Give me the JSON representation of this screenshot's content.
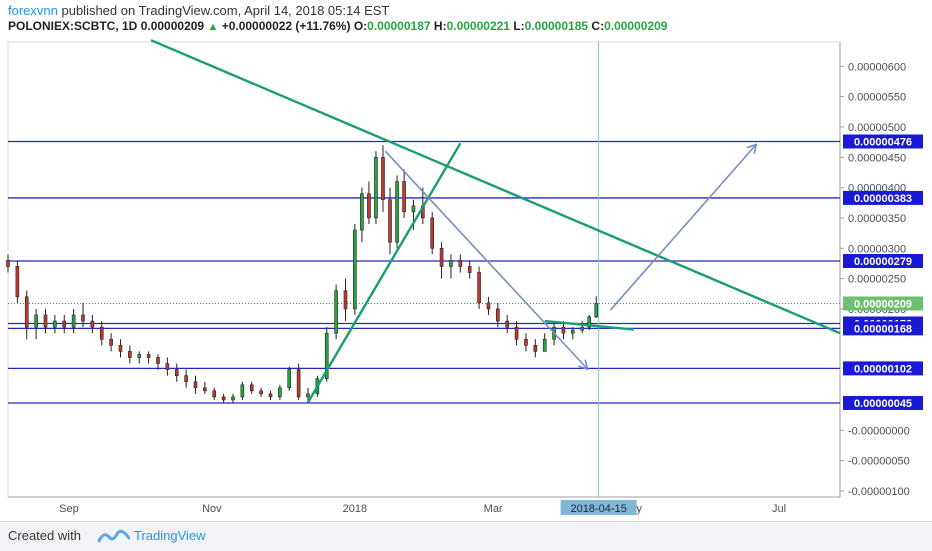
{
  "header": {
    "author": "forexvnn",
    "published_text": " published on TradingView.com, April 14, 2018 05:14 EST",
    "symbol": "POLONIEX:SCBTC, 1D",
    "last": "0.00000209",
    "change": "+0.00000022 (+11.76%)",
    "o_label": "O:",
    "o_value": "0.00000187",
    "h_label": "H:",
    "h_value": "0.00000221",
    "l_label": "L:",
    "l_value": "0.00000185",
    "c_label": "C:",
    "c_value": "0.00000209"
  },
  "footer": {
    "created_with": "Created with",
    "brand": "TradingView"
  },
  "colors": {
    "up": "#26a641",
    "down": "#c0392b",
    "hline": "#2727c7",
    "trend": "#1a9c74",
    "arrow": "#7b8bc4",
    "crosshair": "#7ec8e3",
    "label_bg": "#1a1ad6",
    "last_label_bg": "#6fbf73",
    "date_label_bg": "#7fb7d4"
  },
  "chart_data": {
    "type": "candlestick",
    "y_axis": {
      "range": [
        -1.1e-06,
        6.4e-06
      ],
      "tick_labels": [
        "0.00000600",
        "0.00000550",
        "0.00000500",
        "0.00000450",
        "0.00000400",
        "0.00000350",
        "0.00000300",
        "0.00000250",
        "0.00000200",
        "-0.00000000",
        "-0.00000050",
        "-0.00000100"
      ],
      "tick_values": [
        6e-06,
        5.5e-06,
        5e-06,
        4.5e-06,
        4e-06,
        3.5e-06,
        3e-06,
        2.5e-06,
        2e-06,
        0,
        -5e-07,
        -1e-06
      ]
    },
    "x_axis": {
      "labels": [
        {
          "text": "Sep",
          "date": "2017-09-01"
        },
        {
          "text": "Nov",
          "date": "2017-11-01"
        },
        {
          "text": "2018",
          "date": "2018-01-01"
        },
        {
          "text": "Mar",
          "date": "2018-03-01"
        },
        {
          "text": "Jul",
          "date": "2018-07-01"
        }
      ],
      "range": [
        "2017-08-06",
        "2018-07-27"
      ],
      "partial_label": {
        "text": "ay",
        "date": "2018-05-01"
      }
    },
    "horizontal_levels": [
      {
        "value": "0.00000476"
      },
      {
        "value": "0.00000383"
      },
      {
        "value": "0.00000279"
      },
      {
        "value": "0.00000176"
      },
      {
        "value": "0.00000168"
      },
      {
        "value": "0.00000102"
      },
      {
        "value": "0.00000045"
      }
    ],
    "last_price_label": "0.00000209",
    "crosshair_date_label": "2018-04-15",
    "crosshair_date": "2018-04-15",
    "trend_lines": [
      {
        "from": {
          "date": "2017-10-06",
          "price": 6.43e-06
        },
        "to": {
          "date": "2018-07-27",
          "price": 1.6e-06
        }
      },
      {
        "from": {
          "date": "2017-12-12",
          "price": 4.6e-07
        },
        "to": {
          "date": "2018-02-15",
          "price": 4.73e-06
        }
      },
      {
        "from": {
          "date": "2018-03-23",
          "price": 1.8e-06
        },
        "to": {
          "date": "2018-04-30",
          "price": 1.66e-06
        }
      }
    ],
    "arrows": [
      {
        "from": {
          "date": "2018-01-14",
          "price": 4.6e-06
        },
        "to": {
          "date": "2018-04-10",
          "price": 1.02e-06
        }
      },
      {
        "from": {
          "date": "2018-04-20",
          "price": 1.98e-06
        },
        "to": {
          "date": "2018-06-21",
          "price": 4.7e-06
        }
      }
    ],
    "candles": [
      {
        "date": "2017-08-06",
        "o": 2.8e-06,
        "h": 2.9e-06,
        "l": 2.6e-06,
        "c": 2.7e-06
      },
      {
        "date": "2017-08-10",
        "o": 2.7e-06,
        "h": 2.8e-06,
        "l": 2.1e-06,
        "c": 2.2e-06
      },
      {
        "date": "2017-08-14",
        "o": 2.2e-06,
        "h": 2.3e-06,
        "l": 1.5e-06,
        "c": 1.7e-06
      },
      {
        "date": "2017-08-18",
        "o": 1.7e-06,
        "h": 2e-06,
        "l": 1.5e-06,
        "c": 1.9e-06
      },
      {
        "date": "2017-08-22",
        "o": 1.9e-06,
        "h": 2e-06,
        "l": 1.6e-06,
        "c": 1.7e-06
      },
      {
        "date": "2017-08-26",
        "o": 1.7e-06,
        "h": 1.9e-06,
        "l": 1.6e-06,
        "c": 1.8e-06
      },
      {
        "date": "2017-08-30",
        "o": 1.8e-06,
        "h": 1.9e-06,
        "l": 1.6e-06,
        "c": 1.7e-06
      },
      {
        "date": "2017-09-03",
        "o": 1.7e-06,
        "h": 2e-06,
        "l": 1.6e-06,
        "c": 1.9e-06
      },
      {
        "date": "2017-09-07",
        "o": 1.9e-06,
        "h": 2.1e-06,
        "l": 1.7e-06,
        "c": 1.8e-06
      },
      {
        "date": "2017-09-11",
        "o": 1.8e-06,
        "h": 1.9e-06,
        "l": 1.6e-06,
        "c": 1.7e-06
      },
      {
        "date": "2017-09-15",
        "o": 1.7e-06,
        "h": 1.8e-06,
        "l": 1.4e-06,
        "c": 1.5e-06
      },
      {
        "date": "2017-09-19",
        "o": 1.5e-06,
        "h": 1.6e-06,
        "l": 1.3e-06,
        "c": 1.4e-06
      },
      {
        "date": "2017-09-23",
        "o": 1.4e-06,
        "h": 1.5e-06,
        "l": 1.2e-06,
        "c": 1.3e-06
      },
      {
        "date": "2017-09-27",
        "o": 1.3e-06,
        "h": 1.4e-06,
        "l": 1.1e-06,
        "c": 1.2e-06
      },
      {
        "date": "2017-10-01",
        "o": 1.2e-06,
        "h": 1.3e-06,
        "l": 1.1e-06,
        "c": 1.25e-06
      },
      {
        "date": "2017-10-05",
        "o": 1.25e-06,
        "h": 1.3e-06,
        "l": 1.1e-06,
        "c": 1.2e-06
      },
      {
        "date": "2017-10-09",
        "o": 1.2e-06,
        "h": 1.25e-06,
        "l": 1e-06,
        "c": 1.1e-06
      },
      {
        "date": "2017-10-13",
        "o": 1.1e-06,
        "h": 1.2e-06,
        "l": 9e-07,
        "c": 1e-06
      },
      {
        "date": "2017-10-17",
        "o": 1e-06,
        "h": 1.1e-06,
        "l": 8e-07,
        "c": 9e-07
      },
      {
        "date": "2017-10-21",
        "o": 9e-07,
        "h": 1e-06,
        "l": 7e-07,
        "c": 8e-07
      },
      {
        "date": "2017-10-25",
        "o": 8e-07,
        "h": 9e-07,
        "l": 6e-07,
        "c": 7e-07
      },
      {
        "date": "2017-10-29",
        "o": 7e-07,
        "h": 8e-07,
        "l": 6e-07,
        "c": 6.5e-07
      },
      {
        "date": "2017-11-02",
        "o": 6.5e-07,
        "h": 7e-07,
        "l": 5e-07,
        "c": 5.5e-07
      },
      {
        "date": "2017-11-06",
        "o": 5.5e-07,
        "h": 6e-07,
        "l": 4.5e-07,
        "c": 5e-07
      },
      {
        "date": "2017-11-10",
        "o": 5e-07,
        "h": 6e-07,
        "l": 4.5e-07,
        "c": 5.5e-07
      },
      {
        "date": "2017-11-14",
        "o": 5.5e-07,
        "h": 8e-07,
        "l": 5e-07,
        "c": 7.5e-07
      },
      {
        "date": "2017-11-18",
        "o": 7.5e-07,
        "h": 8e-07,
        "l": 6e-07,
        "c": 6.5e-07
      },
      {
        "date": "2017-11-22",
        "o": 6.5e-07,
        "h": 7e-07,
        "l": 5.5e-07,
        "c": 6e-07
      },
      {
        "date": "2017-11-26",
        "o": 6e-07,
        "h": 6.5e-07,
        "l": 5e-07,
        "c": 5.5e-07
      },
      {
        "date": "2017-11-30",
        "o": 5.5e-07,
        "h": 7.5e-07,
        "l": 5e-07,
        "c": 7e-07
      },
      {
        "date": "2017-12-04",
        "o": 7e-07,
        "h": 1.05e-06,
        "l": 6.5e-07,
        "c": 1e-06
      },
      {
        "date": "2017-12-08",
        "o": 1e-06,
        "h": 1.1e-06,
        "l": 5e-07,
        "c": 5.5e-07
      },
      {
        "date": "2017-12-12",
        "o": 5.5e-07,
        "h": 7e-07,
        "l": 4.5e-07,
        "c": 6e-07
      },
      {
        "date": "2017-12-16",
        "o": 6e-07,
        "h": 9e-07,
        "l": 5.5e-07,
        "c": 8.5e-07
      },
      {
        "date": "2017-12-20",
        "o": 8.5e-07,
        "h": 1.7e-06,
        "l": 8e-07,
        "c": 1.6e-06
      },
      {
        "date": "2017-12-24",
        "o": 1.6e-06,
        "h": 2.4e-06,
        "l": 1.5e-06,
        "c": 2.3e-06
      },
      {
        "date": "2017-12-28",
        "o": 2.3e-06,
        "h": 2.5e-06,
        "l": 1.8e-06,
        "c": 2e-06
      },
      {
        "date": "2018-01-01",
        "o": 2e-06,
        "h": 3.4e-06,
        "l": 1.9e-06,
        "c": 3.3e-06
      },
      {
        "date": "2018-01-04",
        "o": 3.3e-06,
        "h": 4e-06,
        "l": 3.1e-06,
        "c": 3.9e-06
      },
      {
        "date": "2018-01-07",
        "o": 3.9e-06,
        "h": 4.1e-06,
        "l": 3.4e-06,
        "c": 3.5e-06
      },
      {
        "date": "2018-01-10",
        "o": 3.5e-06,
        "h": 4.6e-06,
        "l": 3.4e-06,
        "c": 4.5e-06
      },
      {
        "date": "2018-01-13",
        "o": 4.5e-06,
        "h": 4.7e-06,
        "l": 3.6e-06,
        "c": 3.8e-06
      },
      {
        "date": "2018-01-16",
        "o": 3.8e-06,
        "h": 4e-06,
        "l": 2.9e-06,
        "c": 3.1e-06
      },
      {
        "date": "2018-01-19",
        "o": 3.1e-06,
        "h": 4.2e-06,
        "l": 3e-06,
        "c": 4.1e-06
      },
      {
        "date": "2018-01-22",
        "o": 4.1e-06,
        "h": 4.3e-06,
        "l": 3.5e-06,
        "c": 3.6e-06
      },
      {
        "date": "2018-01-26",
        "o": 3.6e-06,
        "h": 3.8e-06,
        "l": 3.3e-06,
        "c": 3.7e-06
      },
      {
        "date": "2018-01-30",
        "o": 3.7e-06,
        "h": 4e-06,
        "l": 3.4e-06,
        "c": 3.5e-06
      },
      {
        "date": "2018-02-03",
        "o": 3.5e-06,
        "h": 3.6e-06,
        "l": 2.9e-06,
        "c": 3e-06
      },
      {
        "date": "2018-02-07",
        "o": 3e-06,
        "h": 3.1e-06,
        "l": 2.5e-06,
        "c": 2.7e-06
      },
      {
        "date": "2018-02-11",
        "o": 2.7e-06,
        "h": 2.9e-06,
        "l": 2.5e-06,
        "c": 2.8e-06
      },
      {
        "date": "2018-02-15",
        "o": 2.8e-06,
        "h": 2.9e-06,
        "l": 2.6e-06,
        "c": 2.7e-06
      },
      {
        "date": "2018-02-19",
        "o": 2.7e-06,
        "h": 2.8e-06,
        "l": 2.5e-06,
        "c": 2.6e-06
      },
      {
        "date": "2018-02-23",
        "o": 2.6e-06,
        "h": 2.7e-06,
        "l": 2e-06,
        "c": 2.1e-06
      },
      {
        "date": "2018-02-27",
        "o": 2.1e-06,
        "h": 2.2e-06,
        "l": 1.9e-06,
        "c": 2e-06
      },
      {
        "date": "2018-03-03",
        "o": 2e-06,
        "h": 2.1e-06,
        "l": 1.7e-06,
        "c": 1.8e-06
      },
      {
        "date": "2018-03-07",
        "o": 1.8e-06,
        "h": 1.9e-06,
        "l": 1.6e-06,
        "c": 1.7e-06
      },
      {
        "date": "2018-03-11",
        "o": 1.7e-06,
        "h": 1.8e-06,
        "l": 1.4e-06,
        "c": 1.5e-06
      },
      {
        "date": "2018-03-15",
        "o": 1.5e-06,
        "h": 1.6e-06,
        "l": 1.3e-06,
        "c": 1.4e-06
      },
      {
        "date": "2018-03-19",
        "o": 1.4e-06,
        "h": 1.5e-06,
        "l": 1.2e-06,
        "c": 1.3e-06
      },
      {
        "date": "2018-03-23",
        "o": 1.3e-06,
        "h": 1.6e-06,
        "l": 1.3e-06,
        "c": 1.5e-06
      },
      {
        "date": "2018-03-27",
        "o": 1.5e-06,
        "h": 1.8e-06,
        "l": 1.4e-06,
        "c": 1.7e-06
      },
      {
        "date": "2018-03-31",
        "o": 1.7e-06,
        "h": 1.8e-06,
        "l": 1.5e-06,
        "c": 1.6e-06
      },
      {
        "date": "2018-04-04",
        "o": 1.6e-06,
        "h": 1.7e-06,
        "l": 1.5e-06,
        "c": 1.65e-06
      },
      {
        "date": "2018-04-08",
        "o": 1.65e-06,
        "h": 1.8e-06,
        "l": 1.6e-06,
        "c": 1.7e-06
      },
      {
        "date": "2018-04-11",
        "o": 1.7e-06,
        "h": 1.9e-06,
        "l": 1.65e-06,
        "c": 1.87e-06
      },
      {
        "date": "2018-04-14",
        "o": 1.87e-06,
        "h": 2.21e-06,
        "l": 1.85e-06,
        "c": 2.09e-06
      }
    ]
  }
}
